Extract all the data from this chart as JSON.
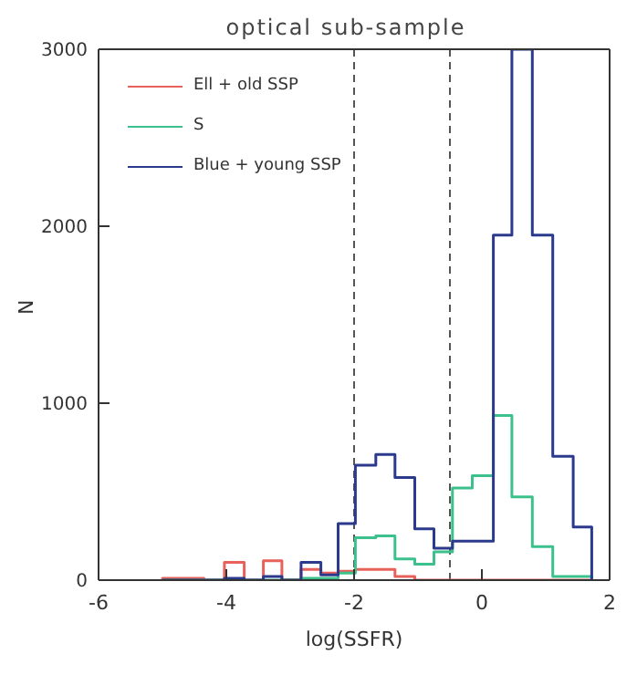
{
  "chart_data": {
    "type": "histogram",
    "title": "optical sub-sample",
    "xlabel": "log(SSFR)",
    "ylabel": "N",
    "bins": [
      -5.0,
      -4.7,
      -4.35,
      -4.03,
      -3.72,
      -3.42,
      -3.13,
      -2.83,
      -2.52,
      -2.25,
      -1.98,
      -1.66,
      -1.36,
      -1.05,
      -0.75,
      -0.46,
      -0.15,
      0.18,
      0.47,
      0.79,
      1.11,
      1.43,
      1.72
    ],
    "series": [
      {
        "name": "Ell + old SSP",
        "color": "#e8605a",
        "values": [
          10,
          10,
          0,
          100,
          0,
          110,
          0,
          60,
          40,
          50,
          60,
          60,
          20,
          0,
          0,
          0,
          0,
          0,
          0,
          0,
          0,
          0
        ]
      },
      {
        "name": "S",
        "color": "#3cc08c",
        "values": [
          0,
          0,
          0,
          0,
          0,
          0,
          0,
          10,
          10,
          40,
          240,
          250,
          120,
          90,
          160,
          520,
          590,
          930,
          470,
          190,
          20,
          20
        ]
      },
      {
        "name": "Blue + young SSP",
        "color": "#2b3a8c",
        "values": [
          0,
          0,
          0,
          10,
          0,
          20,
          0,
          100,
          30,
          320,
          650,
          710,
          580,
          290,
          180,
          220,
          220,
          1950,
          3000,
          1950,
          700,
          300
        ]
      }
    ],
    "xlim": [
      -6,
      2
    ],
    "xticks": [
      -6,
      -4,
      -2,
      0,
      2
    ],
    "ylim": [
      0,
      3000
    ],
    "yticks": [
      0,
      1000,
      2000,
      3000
    ],
    "ref_lines": [
      {
        "axis": "x",
        "value": -2,
        "color": "#555555",
        "line_style": "dashed"
      },
      {
        "axis": "x",
        "value": -0.5,
        "color": "#555555",
        "line_style": "dashed"
      }
    ],
    "grid": false,
    "legend": "top left"
  }
}
